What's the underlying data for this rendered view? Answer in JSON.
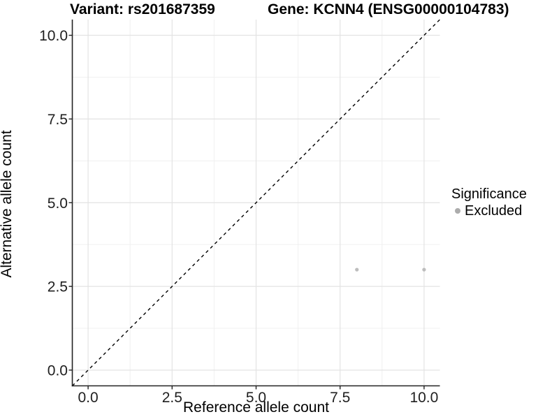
{
  "title": {
    "left": "Variant: rs201687359",
    "right": "Gene: KCNN4 (ENSG00000104783)"
  },
  "axes": {
    "x": {
      "label": "Reference allele count",
      "ticks": [
        0.0,
        2.5,
        5.0,
        7.5,
        10.0
      ],
      "tick_labels": [
        "0.0",
        "2.5",
        "5.0",
        "7.5",
        "10.0"
      ]
    },
    "y": {
      "label": "Alternative allele count",
      "ticks": [
        0.0,
        2.5,
        5.0,
        7.5,
        10.0
      ],
      "tick_labels": [
        "0.0",
        "2.5",
        "5.0",
        "7.5",
        "10.0"
      ]
    }
  },
  "legend": {
    "title": "Significance",
    "items": [
      {
        "label": "Excluded",
        "color": "#acacac",
        "shape": "point-icon"
      }
    ]
  },
  "chart_data": {
    "type": "scatter",
    "title": "Variant: rs201687359 | Gene: KCNN4 (ENSG00000104783)",
    "xlabel": "Reference allele count",
    "ylabel": "Alternative allele count",
    "xlim": [
      -0.47,
      10.47
    ],
    "ylim": [
      -0.47,
      10.47
    ],
    "x_ticks": [
      0.0,
      2.5,
      5.0,
      7.5,
      10.0
    ],
    "y_ticks": [
      0.0,
      2.5,
      5.0,
      7.5,
      10.0
    ],
    "grid": "major+minor",
    "legend_position": "right",
    "series": [
      {
        "name": "Excluded",
        "color": "#bdbdbd",
        "marker_radius": 2.6,
        "points": [
          {
            "x": 8,
            "y": 3
          },
          {
            "x": 10,
            "y": 3
          }
        ]
      }
    ],
    "reference_line": {
      "type": "identity",
      "from": {
        "x": -0.47,
        "y": -0.47
      },
      "to": {
        "x": 10.47,
        "y": 10.47
      },
      "style": "dashed",
      "color": "#000000"
    }
  },
  "colors": {
    "background": "#ffffff",
    "grid_major": "#e3e3e3",
    "grid_minor": "#f0f0f0",
    "axis_line": "#222222",
    "tick_mark": "#222222",
    "tick_label": "#1f1f1f",
    "point": "#bdbdbd",
    "legend_key": "#acacac"
  }
}
